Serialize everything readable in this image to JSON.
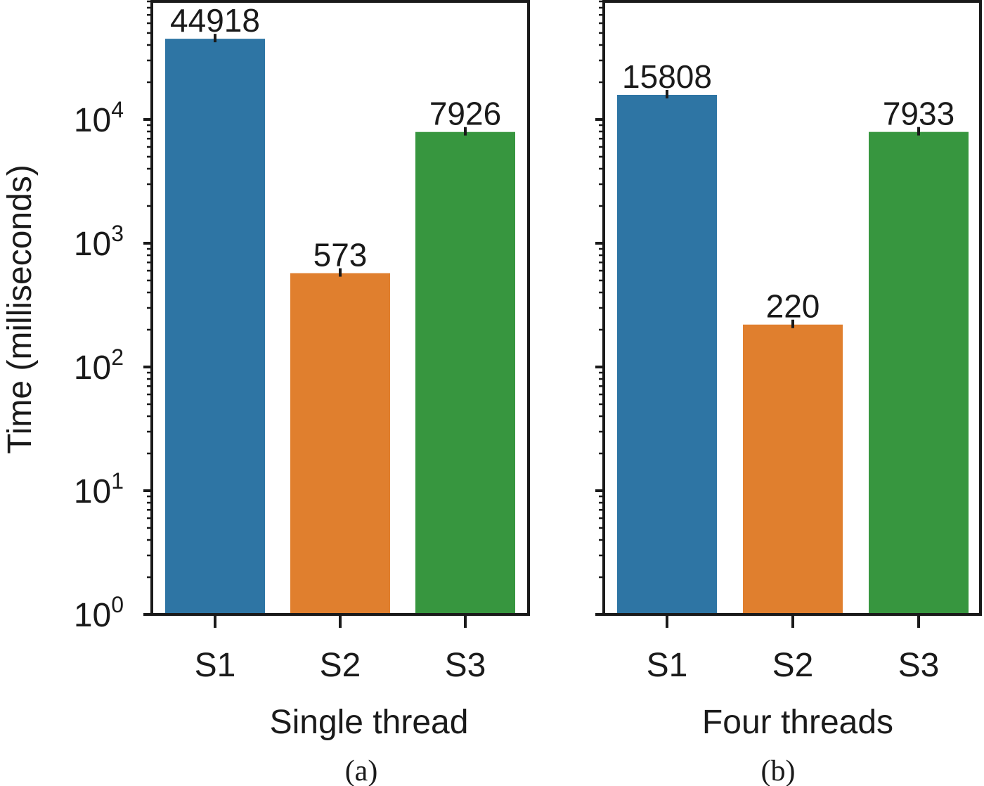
{
  "chart_data": [
    {
      "type": "bar",
      "panel": "(a)",
      "xlabel": "Single thread",
      "ylabel": "Time (milliseconds)",
      "yscale": "log",
      "ylim": [
        1,
        90000
      ],
      "categories": [
        "S1",
        "S2",
        "S3"
      ],
      "values": [
        44918,
        573,
        7926
      ],
      "data_labels": [
        "44918",
        "573",
        "7926"
      ],
      "colors": [
        "#2e75a4",
        "#e07f2e",
        "#37963f"
      ],
      "y_ticks": [
        {
          "value": 1,
          "base": "10",
          "exp": "0"
        },
        {
          "value": 10,
          "base": "10",
          "exp": "1"
        },
        {
          "value": 100,
          "base": "10",
          "exp": "2"
        },
        {
          "value": 1000,
          "base": "10",
          "exp": "3"
        },
        {
          "value": 10000,
          "base": "10",
          "exp": "4"
        }
      ]
    },
    {
      "type": "bar",
      "panel": "(b)",
      "xlabel": "Four threads",
      "yscale": "log",
      "ylim": [
        1,
        90000
      ],
      "categories": [
        "S1",
        "S2",
        "S3"
      ],
      "values": [
        15808,
        220,
        7933
      ],
      "data_labels": [
        "15808",
        "220",
        "7933"
      ],
      "colors": [
        "#2e75a4",
        "#e07f2e",
        "#37963f"
      ]
    }
  ]
}
